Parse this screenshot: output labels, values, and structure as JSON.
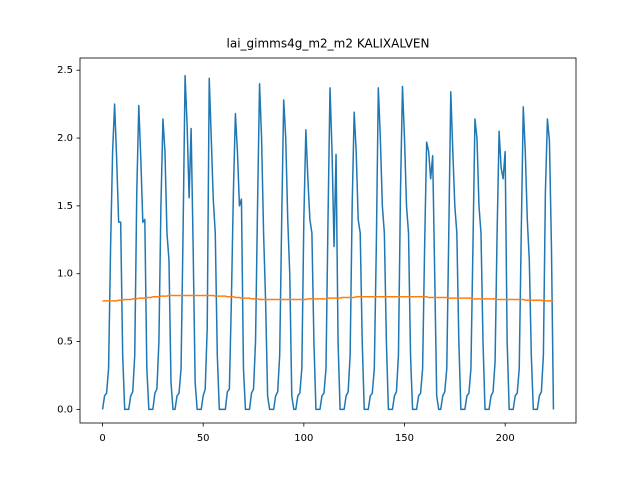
{
  "chart_data": {
    "type": "line",
    "title": "lai_gimms4g_m2_m2 KALIXALVEN",
    "x": [
      0,
      1,
      2,
      3,
      4,
      5,
      6,
      7,
      8,
      9,
      10,
      11,
      12,
      13,
      14,
      15,
      16,
      17,
      18,
      19,
      20,
      21,
      22,
      23,
      24,
      25,
      26,
      27,
      28,
      29,
      30,
      31,
      32,
      33,
      34,
      35,
      36,
      37,
      38,
      39,
      40,
      41,
      42,
      43,
      44,
      45,
      46,
      47,
      48,
      49,
      50,
      51,
      52,
      53,
      54,
      55,
      56,
      57,
      58,
      59,
      60,
      61,
      62,
      63,
      64,
      65,
      66,
      67,
      68,
      69,
      70,
      71,
      72,
      73,
      74,
      75,
      76,
      77,
      78,
      79,
      80,
      81,
      82,
      83,
      84,
      85,
      86,
      87,
      88,
      89,
      90,
      91,
      92,
      93,
      94,
      95,
      96,
      97,
      98,
      99,
      100,
      101,
      102,
      103,
      104,
      105,
      106,
      107,
      108,
      109,
      110,
      111,
      112,
      113,
      114,
      115,
      116,
      117,
      118,
      119,
      120,
      121,
      122,
      123,
      124,
      125,
      126,
      127,
      128,
      129,
      130,
      131,
      132,
      133,
      134,
      135,
      136,
      137,
      138,
      139,
      140,
      141,
      142,
      143,
      144,
      145,
      146,
      147,
      148,
      149,
      150,
      151,
      152,
      153,
      154,
      155,
      156,
      157,
      158,
      159,
      160,
      161,
      162,
      163,
      164,
      165,
      166,
      167,
      168,
      169,
      170,
      171,
      172,
      173,
      174,
      175,
      176,
      177,
      178,
      179,
      180,
      181,
      182,
      183,
      184,
      185,
      186,
      187,
      188,
      189,
      190,
      191,
      192,
      193,
      194,
      195,
      196,
      197,
      198,
      199,
      200,
      201,
      202,
      203,
      204,
      205,
      206,
      207,
      208,
      209,
      210,
      211,
      212,
      213,
      214,
      215,
      216,
      217,
      218,
      219,
      220,
      221,
      222,
      223,
      224
    ],
    "series": [
      {
        "color": "#1f77b4",
        "values": [
          0,
          0.1,
          0.12,
          0.3,
          1.2,
          1.9,
          2.25,
          1.85,
          1.38,
          1.38,
          0.4,
          0,
          0,
          0,
          0.1,
          0.13,
          0.4,
          1.6,
          2.24,
          1.85,
          1.38,
          1.4,
          0.3,
          0,
          0,
          0,
          0.12,
          0.15,
          0.5,
          1.5,
          2.14,
          1.9,
          1.3,
          1.1,
          0.2,
          0,
          0,
          0.1,
          0.12,
          0.3,
          1.3,
          2.46,
          2.1,
          1.56,
          2.07,
          1.2,
          0.2,
          0,
          0,
          0,
          0.1,
          0.15,
          0.6,
          2.44,
          2.0,
          1.55,
          1.3,
          0.4,
          0,
          0,
          0,
          0,
          0.13,
          0.15,
          0.8,
          1.6,
          2.18,
          1.9,
          1.5,
          1.55,
          0.3,
          0,
          0,
          0,
          0.12,
          0.15,
          0.5,
          1.5,
          2.4,
          2.0,
          1.3,
          0.8,
          0.1,
          0,
          0,
          0,
          0.1,
          0.13,
          0.4,
          1.4,
          2.28,
          2.0,
          1.4,
          1.0,
          0.1,
          0,
          0,
          0.1,
          0.12,
          0.3,
          1.4,
          2.06,
          1.7,
          1.4,
          1.3,
          0.5,
          0,
          0,
          0,
          0.1,
          0.12,
          0.3,
          1.4,
          2.37,
          1.9,
          1.2,
          1.88,
          0.5,
          0,
          0,
          0,
          0.1,
          0.13,
          0.4,
          1.5,
          2.19,
          1.9,
          1.4,
          1.3,
          0.5,
          0,
          0,
          0,
          0.1,
          0.12,
          0.3,
          1.2,
          2.37,
          2.0,
          1.5,
          1.3,
          0.5,
          0,
          0,
          0,
          0.1,
          0.13,
          0.4,
          1.6,
          2.38,
          2.0,
          1.5,
          1.3,
          0.4,
          0,
          0,
          0,
          0.1,
          0.12,
          0.3,
          1.2,
          1.97,
          1.9,
          1.7,
          1.87,
          1.0,
          0.1,
          0,
          0,
          0.1,
          0.13,
          0.3,
          1.3,
          2.34,
          1.9,
          1.5,
          1.3,
          0.5,
          0,
          0,
          0,
          0.1,
          0.12,
          0.3,
          1.2,
          2.14,
          2.0,
          1.5,
          1.3,
          0.5,
          0,
          0,
          0,
          0.1,
          0.13,
          0.35,
          1.3,
          2.05,
          1.78,
          1.7,
          1.9,
          0.5,
          0,
          0,
          0,
          0.1,
          0.12,
          0.3,
          1.3,
          2.23,
          1.9,
          1.4,
          1.1,
          0.4,
          0,
          0,
          0,
          0.1,
          0.13,
          0.4,
          1.6,
          2.14,
          1.98,
          1.2,
          0
        ]
      },
      {
        "color": "#ff7f0e",
        "values": [
          0.8,
          0.8,
          0.8,
          0.8,
          0.8,
          0.8,
          0.8,
          0.8,
          0.805,
          0.805,
          0.805,
          0.81,
          0.81,
          0.81,
          0.81,
          0.815,
          0.815,
          0.815,
          0.82,
          0.82,
          0.82,
          0.82,
          0.825,
          0.825,
          0.825,
          0.83,
          0.83,
          0.83,
          0.83,
          0.835,
          0.835,
          0.835,
          0.835,
          0.84,
          0.84,
          0.84,
          0.84,
          0.84,
          0.84,
          0.84,
          0.84,
          0.84,
          0.84,
          0.84,
          0.84,
          0.84,
          0.84,
          0.84,
          0.84,
          0.84,
          0.84,
          0.84,
          0.84,
          0.84,
          0.84,
          0.84,
          0.835,
          0.835,
          0.835,
          0.835,
          0.835,
          0.835,
          0.83,
          0.83,
          0.83,
          0.83,
          0.825,
          0.825,
          0.825,
          0.82,
          0.82,
          0.82,
          0.82,
          0.82,
          0.815,
          0.815,
          0.815,
          0.815,
          0.81,
          0.81,
          0.81,
          0.81,
          0.81,
          0.81,
          0.81,
          0.81,
          0.81,
          0.81,
          0.81,
          0.81,
          0.81,
          0.81,
          0.81,
          0.81,
          0.81,
          0.81,
          0.81,
          0.81,
          0.81,
          0.81,
          0.81,
          0.81,
          0.815,
          0.815,
          0.815,
          0.815,
          0.815,
          0.815,
          0.815,
          0.815,
          0.815,
          0.815,
          0.82,
          0.82,
          0.82,
          0.82,
          0.82,
          0.82,
          0.82,
          0.825,
          0.825,
          0.825,
          0.825,
          0.825,
          0.825,
          0.825,
          0.83,
          0.83,
          0.83,
          0.83,
          0.83,
          0.83,
          0.83,
          0.83,
          0.83,
          0.83,
          0.83,
          0.83,
          0.83,
          0.83,
          0.83,
          0.83,
          0.83,
          0.83,
          0.83,
          0.83,
          0.83,
          0.83,
          0.83,
          0.83,
          0.83,
          0.83,
          0.83,
          0.83,
          0.83,
          0.83,
          0.83,
          0.83,
          0.83,
          0.83,
          0.83,
          0.83,
          0.825,
          0.825,
          0.825,
          0.825,
          0.825,
          0.825,
          0.825,
          0.825,
          0.825,
          0.825,
          0.82,
          0.82,
          0.82,
          0.82,
          0.82,
          0.82,
          0.82,
          0.82,
          0.82,
          0.82,
          0.82,
          0.82,
          0.815,
          0.815,
          0.815,
          0.815,
          0.815,
          0.815,
          0.815,
          0.815,
          0.815,
          0.815,
          0.815,
          0.815,
          0.81,
          0.81,
          0.81,
          0.81,
          0.81,
          0.81,
          0.81,
          0.81,
          0.81,
          0.81,
          0.81,
          0.81,
          0.81,
          0.81,
          0.805,
          0.805,
          0.805,
          0.805,
          0.805,
          0.805,
          0.805,
          0.805,
          0.805,
          0.8,
          0.8,
          0.8,
          0.8,
          0.8,
          0.8
        ]
      }
    ],
    "xlim": [
      -11.2,
      235.2
    ],
    "ylim": [
      -0.1,
      2.59
    ],
    "xticks": [
      0,
      50,
      100,
      150,
      200
    ],
    "yticks": [
      {
        "value": 0,
        "label": "0.0"
      },
      {
        "value": 0.5,
        "label": "0.5"
      },
      {
        "value": 1,
        "label": "1.0"
      },
      {
        "value": 1.5,
        "label": "1.5"
      },
      {
        "value": 2,
        "label": "2.0"
      },
      {
        "value": 2.5,
        "label": "2.5"
      }
    ]
  }
}
